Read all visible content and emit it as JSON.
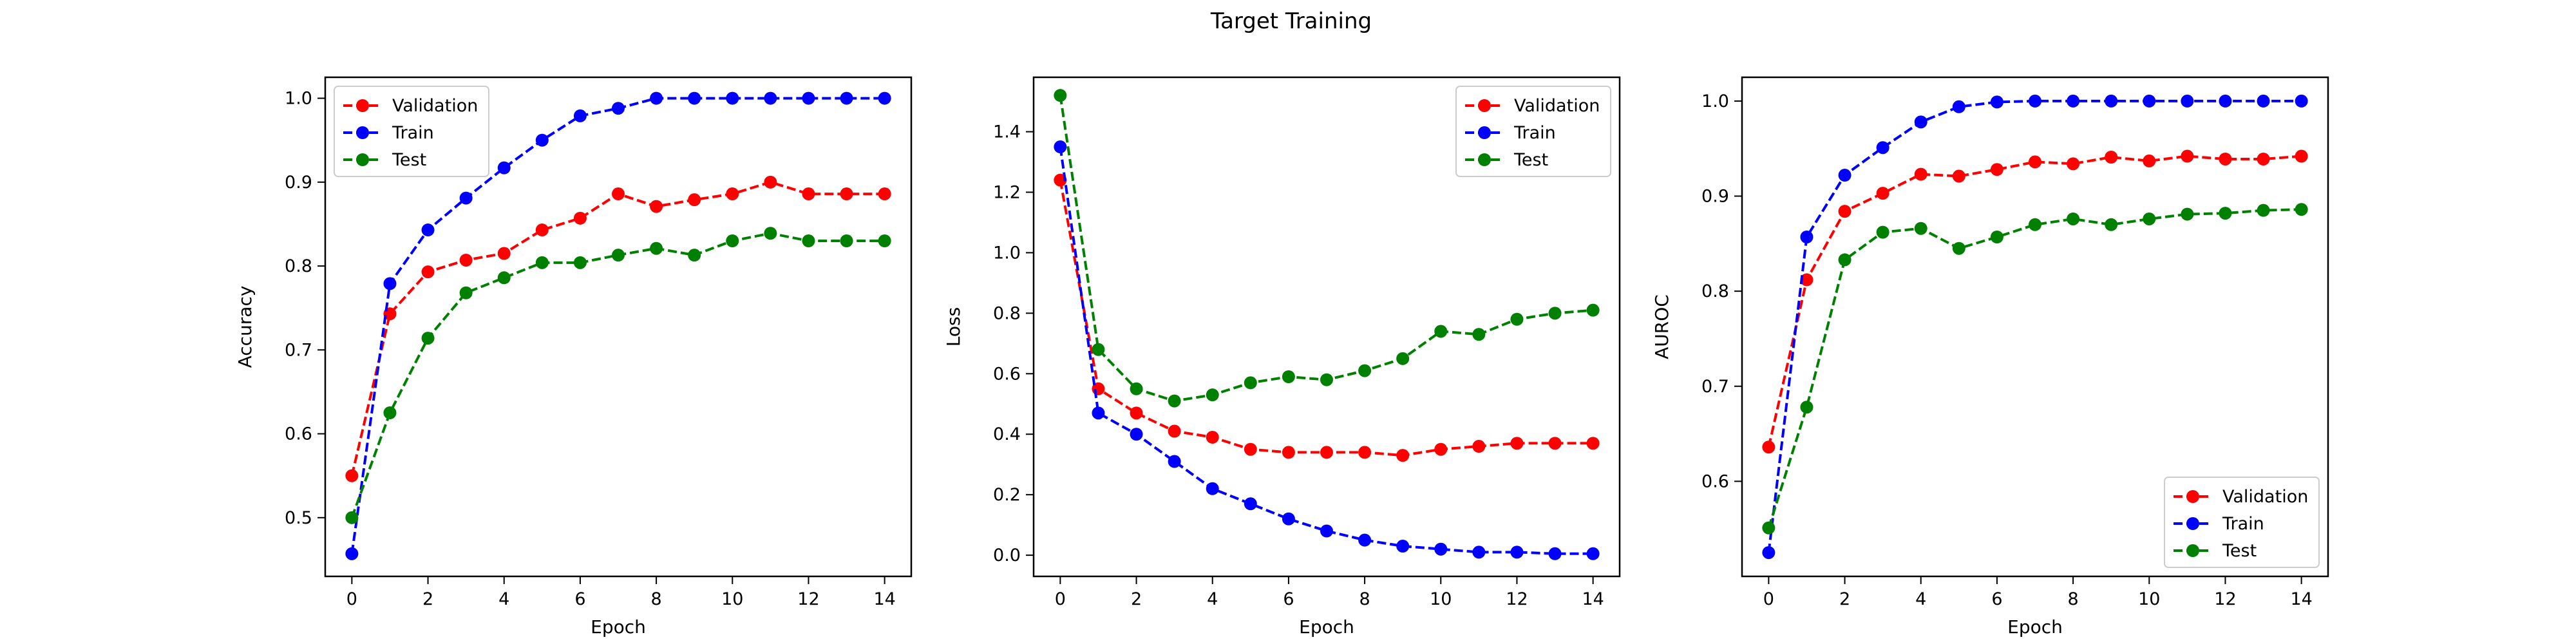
{
  "figure": {
    "title": "Target Training"
  },
  "chart_data": [
    {
      "type": "line",
      "xlabel": "Epoch",
      "ylabel": "Accuracy",
      "xlim": [
        -0.7,
        14.7
      ],
      "ylim": [
        0.43,
        1.025
      ],
      "xticks": [
        0,
        2,
        4,
        6,
        8,
        10,
        12,
        14
      ],
      "xtick_labels": [
        "0",
        "2",
        "4",
        "6",
        "8",
        "10",
        "12",
        "14"
      ],
      "yticks": [
        0.5,
        0.6,
        0.7,
        0.8,
        0.9,
        1.0
      ],
      "ytick_labels": [
        "0.5",
        "0.6",
        "0.7",
        "0.8",
        "0.9",
        "1.0"
      ],
      "legend_position": "upper-left",
      "x": [
        0,
        1,
        2,
        3,
        4,
        5,
        6,
        7,
        8,
        9,
        10,
        11,
        12,
        13,
        14
      ],
      "series": [
        {
          "name": "Validation",
          "color": "#ff0000",
          "values": [
            0.55,
            0.743,
            0.793,
            0.807,
            0.815,
            0.843,
            0.857,
            0.886,
            0.871,
            0.879,
            0.886,
            0.9,
            0.886,
            0.886,
            0.886
          ]
        },
        {
          "name": "Train",
          "color": "#0000ff",
          "values": [
            0.457,
            0.779,
            0.843,
            0.881,
            0.917,
            0.95,
            0.979,
            0.988,
            1.0,
            1.0,
            1.0,
            1.0,
            1.0,
            1.0,
            1.0
          ]
        },
        {
          "name": "Test",
          "color": "#008000",
          "values": [
            0.5,
            0.625,
            0.714,
            0.768,
            0.786,
            0.804,
            0.804,
            0.813,
            0.821,
            0.813,
            0.83,
            0.839,
            0.83,
            0.83,
            0.83
          ]
        }
      ]
    },
    {
      "type": "line",
      "xlabel": "Epoch",
      "ylabel": "Loss",
      "xlim": [
        -0.7,
        14.7
      ],
      "ylim": [
        -0.07,
        1.58
      ],
      "xticks": [
        0,
        2,
        4,
        6,
        8,
        10,
        12,
        14
      ],
      "xtick_labels": [
        "0",
        "2",
        "4",
        "6",
        "8",
        "10",
        "12",
        "14"
      ],
      "yticks": [
        0.0,
        0.2,
        0.4,
        0.6,
        0.8,
        1.0,
        1.2,
        1.4
      ],
      "ytick_labels": [
        "0.0",
        "0.2",
        "0.4",
        "0.6",
        "0.8",
        "1.0",
        "1.2",
        "1.4"
      ],
      "legend_position": "upper-right",
      "x": [
        0,
        1,
        2,
        3,
        4,
        5,
        6,
        7,
        8,
        9,
        10,
        11,
        12,
        13,
        14
      ],
      "series": [
        {
          "name": "Validation",
          "color": "#ff0000",
          "values": [
            1.24,
            0.55,
            0.47,
            0.41,
            0.39,
            0.35,
            0.34,
            0.34,
            0.34,
            0.33,
            0.35,
            0.36,
            0.37,
            0.37,
            0.37
          ]
        },
        {
          "name": "Train",
          "color": "#0000ff",
          "values": [
            1.35,
            0.47,
            0.4,
            0.31,
            0.22,
            0.17,
            0.12,
            0.08,
            0.05,
            0.03,
            0.02,
            0.01,
            0.01,
            0.005,
            0.005
          ]
        },
        {
          "name": "Test",
          "color": "#008000",
          "values": [
            1.52,
            0.68,
            0.55,
            0.51,
            0.53,
            0.57,
            0.59,
            0.58,
            0.61,
            0.65,
            0.74,
            0.73,
            0.78,
            0.8,
            0.81
          ]
        }
      ]
    },
    {
      "type": "line",
      "xlabel": "Epoch",
      "ylabel": "AUROC",
      "xlim": [
        -0.7,
        14.7
      ],
      "ylim": [
        0.5,
        1.025
      ],
      "xticks": [
        0,
        2,
        4,
        6,
        8,
        10,
        12,
        14
      ],
      "xtick_labels": [
        "0",
        "2",
        "4",
        "6",
        "8",
        "10",
        "12",
        "14"
      ],
      "yticks": [
        0.6,
        0.7,
        0.8,
        0.9,
        1.0
      ],
      "ytick_labels": [
        "0.6",
        "0.7",
        "0.8",
        "0.9",
        "1.0"
      ],
      "legend_position": "lower-right",
      "x": [
        0,
        1,
        2,
        3,
        4,
        5,
        6,
        7,
        8,
        9,
        10,
        11,
        12,
        13,
        14
      ],
      "series": [
        {
          "name": "Validation",
          "color": "#ff0000",
          "values": [
            0.636,
            0.812,
            0.884,
            0.903,
            0.923,
            0.921,
            0.928,
            0.936,
            0.934,
            0.941,
            0.937,
            0.942,
            0.939,
            0.939,
            0.942
          ]
        },
        {
          "name": "Train",
          "color": "#0000ff",
          "values": [
            0.525,
            0.857,
            0.922,
            0.951,
            0.978,
            0.994,
            0.999,
            1.0,
            1.0,
            1.0,
            1.0,
            1.0,
            1.0,
            1.0,
            1.0
          ]
        },
        {
          "name": "Test",
          "color": "#008000",
          "values": [
            0.551,
            0.678,
            0.833,
            0.862,
            0.866,
            0.845,
            0.857,
            0.87,
            0.876,
            0.87,
            0.876,
            0.881,
            0.882,
            0.885,
            0.886
          ]
        }
      ]
    }
  ]
}
